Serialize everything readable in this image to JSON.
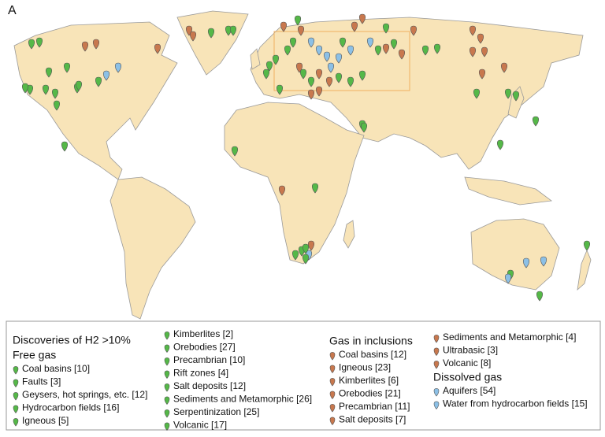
{
  "panel_label": "A",
  "legend": {
    "title": "Discoveries of H2 >10%",
    "groups": [
      {
        "heading": "Free gas",
        "color": "#55b848",
        "items": [
          "Coal basins [10]",
          "Faults [3]",
          "Geysers, hot springs, etc. [12]",
          "Hydrocarbon fields [16]",
          "Igneous [5]",
          "Kimberlites [2]",
          "Orebodies [27]",
          "Precambrian [10]",
          "Rift zones [4]",
          "Salt deposits [12]",
          "Sediments and Metamorphic [26]",
          "Serpentinization [25]",
          "Volcanic [17]"
        ]
      },
      {
        "heading": "Gas in inclusions",
        "color": "#c8784e",
        "items": [
          "Coal basins [12]",
          "Igneous [23]",
          "Kimberlites [6]",
          "Orebodies [21]",
          "Precambrian [11]",
          "Salt deposits [7]",
          "Sediments and Metamorphic [4]",
          "Ultrabasic [3]",
          "Volcanic [8]"
        ]
      },
      {
        "heading": "Dissolved gas",
        "color": "#8cc0e6",
        "items": [
          "Aquifers [54]",
          "Water from hydrocarbon fields [15]"
        ]
      }
    ]
  }
}
